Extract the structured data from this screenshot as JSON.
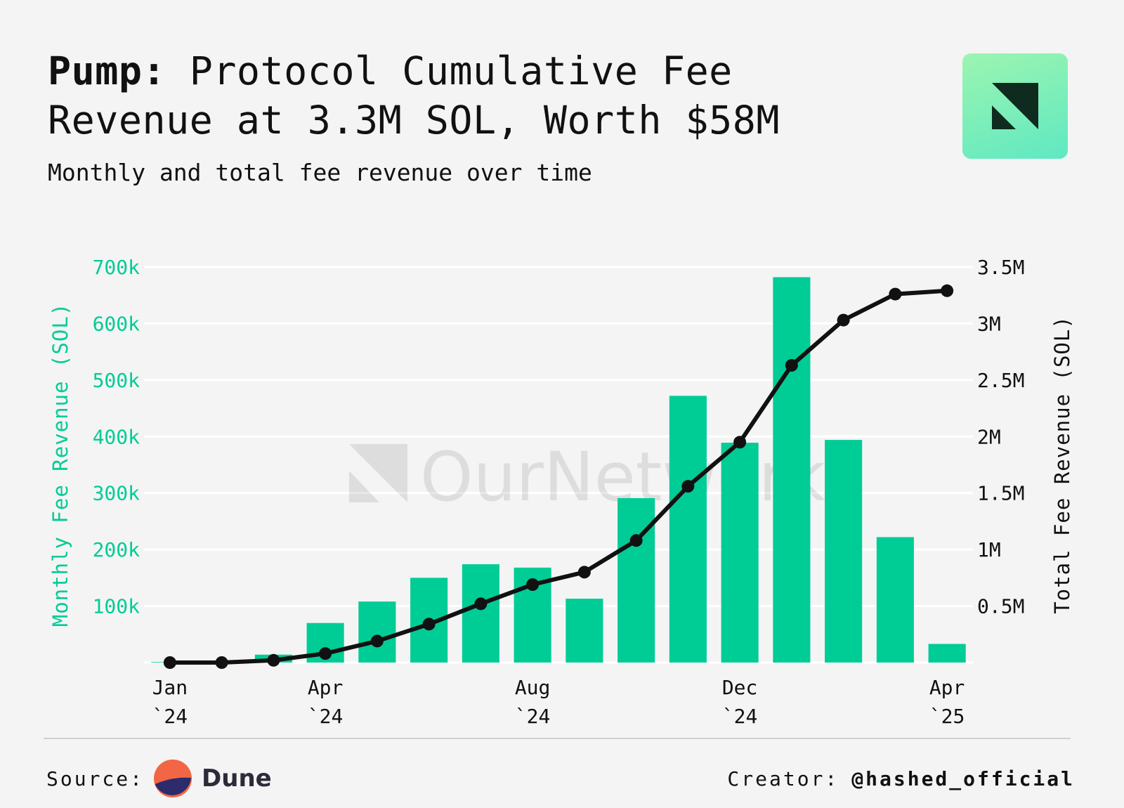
{
  "header": {
    "title_lead": "Pump:",
    "title_rest": "Protocol Cumulative Fee Revenue at 3.3M SOL, Worth $58M",
    "subtitle": "Monthly and total fee revenue over time"
  },
  "brand": {
    "logo_icon": "ournetwork-logo-icon",
    "watermark": "OurNetwork"
  },
  "footer": {
    "source_label": "Source:",
    "source_icon": "dune-logo-icon",
    "source_name": "Dune",
    "creator_label": "Creator:",
    "creator_handle": "@hashed_official"
  },
  "colors": {
    "bar": "#00cc96",
    "line": "#111111",
    "left_axis": "#00cc96",
    "right_axis": "#111111",
    "logo_accent": "#7ef0b8"
  },
  "chart_data": {
    "type": "bar",
    "title": "Pump: Protocol Cumulative Fee Revenue at 3.3M SOL, Worth $58M",
    "subtitle": "Monthly and total fee revenue over time",
    "months": [
      "Jan 2024",
      "Feb 2024",
      "Mar 2024",
      "Apr 2024",
      "May 2024",
      "Jun 2024",
      "Jul 2024",
      "Aug 2024",
      "Sep 2024",
      "Oct 2024",
      "Nov 2024",
      "Dec 2024",
      "Jan 2025",
      "Feb 2025",
      "Mar 2025",
      "Apr 2025"
    ],
    "x_ticks": [
      {
        "index": 0,
        "line1": "Jan",
        "line2": "`24"
      },
      {
        "index": 3,
        "line1": "Apr",
        "line2": "`24"
      },
      {
        "index": 7,
        "line1": "Aug",
        "line2": "`24"
      },
      {
        "index": 11,
        "line1": "Dec",
        "line2": "`24"
      },
      {
        "index": 15,
        "line1": "Apr",
        "line2": "`25"
      }
    ],
    "series": [
      {
        "name": "Monthly Fee Revenue (SOL)",
        "type": "bar",
        "axis": "left",
        "values": [
          1000,
          2000,
          14000,
          70000,
          108000,
          150000,
          174000,
          168000,
          113000,
          291000,
          472000,
          389000,
          682000,
          394000,
          222000,
          33000
        ]
      },
      {
        "name": "Total Fee Revenue (SOL)",
        "type": "line",
        "axis": "right",
        "values": [
          0,
          0,
          20000,
          80000,
          190000,
          340000,
          520000,
          690000,
          800000,
          1080000,
          1560000,
          1950000,
          2630000,
          3030000,
          3260000,
          3290000
        ]
      }
    ],
    "y_left": {
      "label": "Monthly Fee Revenue (SOL)",
      "range": [
        0,
        700000
      ],
      "ticks": [
        100000,
        200000,
        300000,
        400000,
        500000,
        600000,
        700000
      ],
      "tick_labels": [
        "100k",
        "200k",
        "300k",
        "400k",
        "500k",
        "600k",
        "700k"
      ]
    },
    "y_right": {
      "label": "Total Fee Revenue (SOL)",
      "range": [
        0,
        3500000
      ],
      "ticks": [
        500000,
        1000000,
        1500000,
        2000000,
        2500000,
        3000000,
        3500000
      ],
      "tick_labels": [
        "0.5M",
        "1M",
        "1.5M",
        "2M",
        "2.5M",
        "3M",
        "3.5M"
      ]
    },
    "grid": true,
    "legend": "none"
  }
}
